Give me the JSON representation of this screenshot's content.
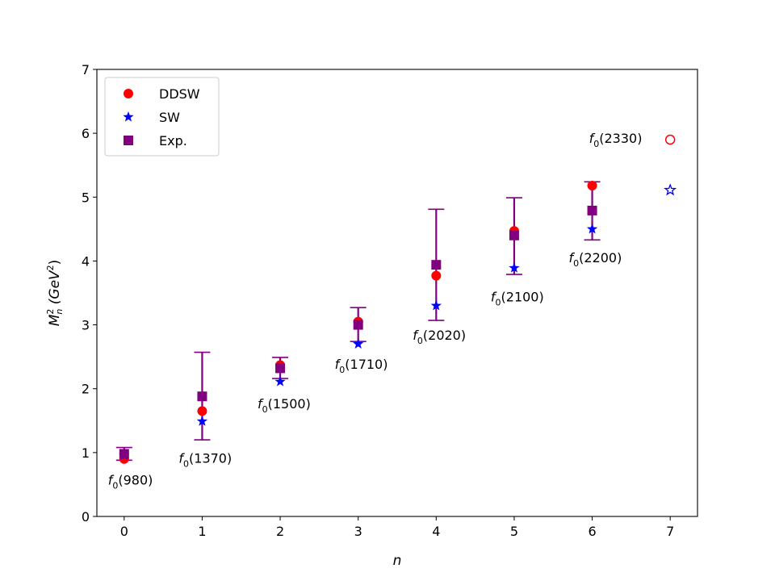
{
  "chart_data": {
    "type": "scatter",
    "xlabel": "n",
    "ylabel_main": "M",
    "ylabel_sup": "2",
    "ylabel_sub": "n",
    "ylabel_unit_pre": " (GeV",
    "ylabel_unit_sup": "2",
    "ylabel_unit_post": ")",
    "xlim": [
      -0.35,
      7.35
    ],
    "ylim": [
      0,
      7
    ],
    "xticks": [
      0,
      1,
      2,
      3,
      4,
      5,
      6,
      7
    ],
    "yticks": [
      0,
      1,
      2,
      3,
      4,
      5,
      6,
      7
    ],
    "legend_position": "upper-left",
    "colors": {
      "ddsw": "#ff0000",
      "sw": "#0000ff",
      "exp": "#800080"
    },
    "series": [
      {
        "key": "ddsw",
        "name": "DDSW",
        "marker": "circle",
        "x": [
          0,
          1,
          2,
          3,
          4,
          5,
          6
        ],
        "y": [
          0.9,
          1.65,
          2.37,
          3.05,
          3.77,
          4.47,
          5.18
        ]
      },
      {
        "key": "sw",
        "name": "SW",
        "marker": "star",
        "x": [
          0,
          1,
          2,
          3,
          4,
          5,
          6
        ],
        "y": [
          0.96,
          1.49,
          2.11,
          2.7,
          3.3,
          3.89,
          4.5
        ]
      },
      {
        "key": "exp",
        "name": "Exp.",
        "marker": "square",
        "x": [
          0,
          1,
          2,
          3,
          4,
          5,
          6
        ],
        "y": [
          0.98,
          1.88,
          2.32,
          3.0,
          3.94,
          4.4,
          4.79
        ],
        "err_low": [
          0.88,
          1.2,
          2.16,
          2.74,
          3.07,
          3.79,
          4.33
        ],
        "err_high": [
          1.08,
          2.57,
          2.49,
          3.27,
          4.81,
          4.99,
          5.24
        ]
      }
    ],
    "predictions": [
      {
        "key": "ddsw",
        "marker": "open-circle",
        "x": 7,
        "y": 5.9
      },
      {
        "key": "sw",
        "marker": "open-star",
        "x": 7,
        "y": 5.11
      }
    ],
    "annotations": [
      {
        "base": "f",
        "sub": "0",
        "rest": "(980)",
        "x": 0.08,
        "y": 0.5
      },
      {
        "base": "f",
        "sub": "0",
        "rest": "(1370)",
        "x": 1.04,
        "y": 0.84
      },
      {
        "base": "f",
        "sub": "0",
        "rest": "(1500)",
        "x": 2.05,
        "y": 1.69
      },
      {
        "base": "f",
        "sub": "0",
        "rest": "(1710)",
        "x": 3.04,
        "y": 2.31
      },
      {
        "base": "f",
        "sub": "0",
        "rest": "(2020)",
        "x": 4.04,
        "y": 2.77
      },
      {
        "base": "f",
        "sub": "0",
        "rest": "(2100)",
        "x": 5.04,
        "y": 3.37
      },
      {
        "base": "f",
        "sub": "0",
        "rest": "(2200)",
        "x": 6.04,
        "y": 3.98
      },
      {
        "base": "f",
        "sub": "0",
        "rest": "(2330)",
        "x": 6.3,
        "y": 5.85
      }
    ]
  }
}
